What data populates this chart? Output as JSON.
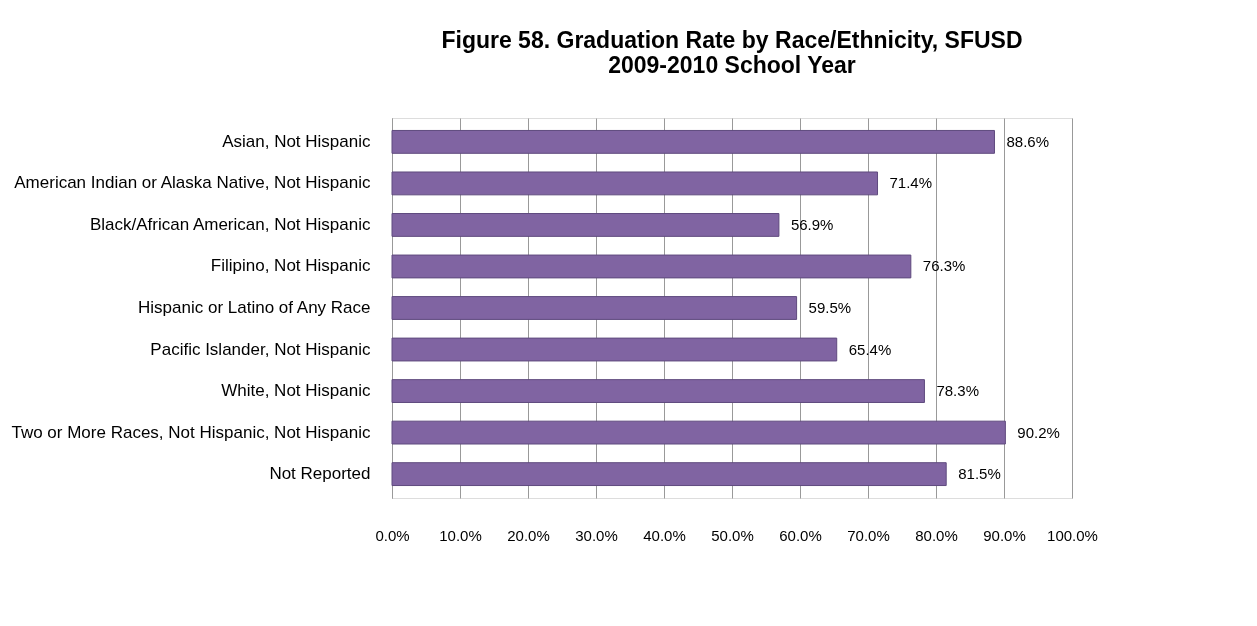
{
  "chart_data": {
    "type": "bar",
    "orientation": "horizontal",
    "title": [
      "Figure 58. Graduation Rate by Race/Ethnicity, SFUSD",
      "2009-2010 School Year"
    ],
    "categories": [
      "Asian, Not Hispanic",
      "American Indian or Alaska Native, Not Hispanic",
      "Black/African American, Not Hispanic",
      "Filipino, Not Hispanic",
      "Hispanic or Latino of Any Race",
      "Pacific Islander, Not Hispanic",
      "White, Not Hispanic",
      "Two or More Races, Not Hispanic, Not Hispanic",
      "Not Reported"
    ],
    "values": [
      88.6,
      71.4,
      56.9,
      76.3,
      59.5,
      65.4,
      78.3,
      90.2,
      81.5
    ],
    "value_labels": [
      "88.6%",
      "71.4%",
      "56.9%",
      "76.3%",
      "59.5%",
      "65.4%",
      "78.3%",
      "90.2%",
      "81.5%"
    ],
    "color": "#8064a2",
    "xlim": [
      0,
      100
    ],
    "xticks": [
      {
        "value": 0,
        "label": "0.0%"
      },
      {
        "value": 10,
        "label": "10.0%"
      },
      {
        "value": 20,
        "label": "20.0%"
      },
      {
        "value": 30,
        "label": "30.0%"
      },
      {
        "value": 40,
        "label": "40.0%"
      },
      {
        "value": 50,
        "label": "50.0%"
      },
      {
        "value": 60,
        "label": "60.0%"
      },
      {
        "value": 70,
        "label": "70.0%"
      },
      {
        "value": 80,
        "label": "80.0%"
      },
      {
        "value": 90,
        "label": "90.0%"
      },
      {
        "value": 100,
        "label": "100.0%"
      }
    ],
    "grid": "x"
  }
}
